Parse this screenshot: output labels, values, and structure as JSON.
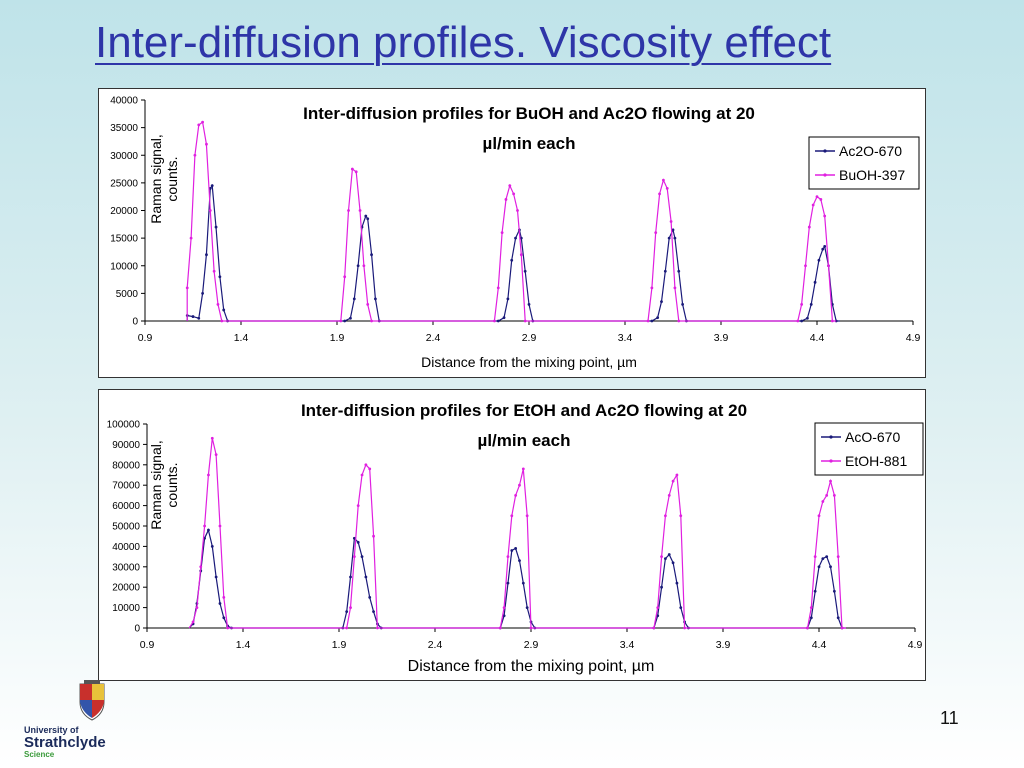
{
  "slide": {
    "title": "Inter-diffusion profiles. Viscosity effect",
    "page_number": "11"
  },
  "logo": {
    "line1": "University of",
    "line2": "Strathclyde",
    "line3": "Science"
  },
  "colors": {
    "navy": "#1a1a7a",
    "magenta": "#e020e0",
    "title_blue": "#2e35a8"
  },
  "chart_data": [
    {
      "type": "line",
      "title_lines": [
        "Inter-diffusion profiles for BuOH and Ac2O flowing at 20",
        "µl/min each"
      ],
      "xlabel": "Distance from the mixing point, µm",
      "ylabel_lines": [
        "Raman signal,",
        "counts."
      ],
      "xlim": [
        0.9,
        4.9
      ],
      "ylim": [
        0,
        40000
      ],
      "xticks": [
        0.9,
        1.4,
        1.9,
        2.4,
        2.9,
        3.4,
        3.9,
        4.4,
        4.9
      ],
      "yticks": [
        0,
        5000,
        10000,
        15000,
        20000,
        25000,
        30000,
        35000,
        40000
      ],
      "grid": false,
      "legend_position": "top-right",
      "series": [
        {
          "name": "Ac2O-670",
          "color": "#1a1a7a",
          "peaks": [
            {
              "x": [
                1.12,
                1.15,
                1.18,
                1.2,
                1.22,
                1.24,
                1.25,
                1.27,
                1.29,
                1.31,
                1.33
              ],
              "y": [
                1000,
                800,
                500,
                5000,
                12000,
                24000,
                24500,
                17000,
                8000,
                2000,
                0
              ]
            },
            {
              "x": [
                1.94,
                1.97,
                1.99,
                2.01,
                2.03,
                2.05,
                2.06,
                2.08,
                2.1,
                2.12
              ],
              "y": [
                0,
                500,
                4000,
                10000,
                17000,
                19000,
                18500,
                12000,
                4000,
                0
              ]
            },
            {
              "x": [
                2.74,
                2.77,
                2.79,
                2.81,
                2.83,
                2.85,
                2.86,
                2.88,
                2.9,
                2.92
              ],
              "y": [
                0,
                600,
                4000,
                11000,
                15000,
                16500,
                15000,
                9000,
                3000,
                0
              ]
            },
            {
              "x": [
                3.54,
                3.57,
                3.59,
                3.61,
                3.63,
                3.65,
                3.66,
                3.68,
                3.7,
                3.72
              ],
              "y": [
                0,
                600,
                3500,
                9000,
                15000,
                16500,
                15000,
                9000,
                3000,
                0
              ]
            },
            {
              "x": [
                4.32,
                4.35,
                4.37,
                4.39,
                4.41,
                4.43,
                4.44,
                4.46,
                4.48,
                4.5
              ],
              "y": [
                0,
                500,
                3000,
                7000,
                11000,
                13000,
                13500,
                10000,
                3000,
                0
              ]
            }
          ]
        },
        {
          "name": "BuOH-397",
          "color": "#e020e0",
          "peaks": [
            {
              "x": [
                1.12,
                1.14,
                1.16,
                1.18,
                1.2,
                1.22,
                1.24,
                1.26,
                1.28,
                1.3
              ],
              "y": [
                6000,
                15000,
                30000,
                35500,
                36000,
                32000,
                20000,
                9000,
                3000,
                0
              ]
            },
            {
              "x": [
                1.92,
                1.94,
                1.96,
                1.98,
                2.0,
                2.02,
                2.04,
                2.06,
                2.08
              ],
              "y": [
                0,
                8000,
                20000,
                27500,
                27000,
                20000,
                10000,
                3000,
                0
              ]
            },
            {
              "x": [
                2.72,
                2.74,
                2.76,
                2.78,
                2.8,
                2.82,
                2.84,
                2.86,
                2.88
              ],
              "y": [
                0,
                6000,
                16000,
                22000,
                24500,
                23000,
                20000,
                12000,
                0
              ]
            },
            {
              "x": [
                3.52,
                3.54,
                3.56,
                3.58,
                3.6,
                3.62,
                3.64,
                3.66,
                3.68
              ],
              "y": [
                0,
                6000,
                16000,
                23000,
                25500,
                24000,
                18000,
                6000,
                0
              ]
            },
            {
              "x": [
                4.3,
                4.32,
                4.34,
                4.36,
                4.38,
                4.4,
                4.42,
                4.44,
                4.46,
                4.48
              ],
              "y": [
                0,
                3000,
                10000,
                17000,
                21000,
                22500,
                22000,
                19000,
                10000,
                0
              ]
            }
          ]
        }
      ]
    },
    {
      "type": "line",
      "title_lines": [
        "Inter-diffusion profiles for EtOH and Ac2O flowing at 20",
        "µl/min each"
      ],
      "xlabel": "Distance from the mixing point, µm",
      "ylabel_lines": [
        "Raman signal,",
        "counts."
      ],
      "xlim": [
        0.9,
        4.9
      ],
      "ylim": [
        0,
        100000
      ],
      "xticks": [
        0.9,
        1.4,
        1.9,
        2.4,
        2.9,
        3.4,
        3.9,
        4.4,
        4.9
      ],
      "yticks": [
        0,
        10000,
        20000,
        30000,
        40000,
        50000,
        60000,
        70000,
        80000,
        90000,
        100000
      ],
      "grid": false,
      "legend_position": "top-right",
      "series": [
        {
          "name": "AcO-670",
          "color": "#1a1a7a",
          "peaks": [
            {
              "x": [
                1.14,
                1.16,
                1.18,
                1.2,
                1.22,
                1.24,
                1.26,
                1.28,
                1.3,
                1.32,
                1.34
              ],
              "y": [
                2000,
                12000,
                28000,
                44000,
                48000,
                40000,
                25000,
                12000,
                5000,
                1000,
                0
              ]
            },
            {
              "x": [
                1.92,
                1.94,
                1.96,
                1.98,
                2.0,
                2.02,
                2.04,
                2.06,
                2.08,
                2.1,
                2.12
              ],
              "y": [
                0,
                8000,
                25000,
                44000,
                42000,
                35000,
                25000,
                15000,
                8000,
                2000,
                0
              ]
            },
            {
              "x": [
                2.74,
                2.76,
                2.78,
                2.8,
                2.82,
                2.84,
                2.86,
                2.88,
                2.9,
                2.92
              ],
              "y": [
                0,
                6000,
                22000,
                38000,
                39000,
                33000,
                22000,
                10000,
                3000,
                0
              ]
            },
            {
              "x": [
                3.54,
                3.56,
                3.58,
                3.6,
                3.62,
                3.64,
                3.66,
                3.68,
                3.7,
                3.72
              ],
              "y": [
                0,
                6000,
                20000,
                34000,
                36000,
                32000,
                22000,
                10000,
                3000,
                0
              ]
            },
            {
              "x": [
                4.34,
                4.36,
                4.38,
                4.4,
                4.42,
                4.44,
                4.46,
                4.48,
                4.5,
                4.52
              ],
              "y": [
                0,
                5000,
                18000,
                30000,
                34000,
                35000,
                30000,
                18000,
                5000,
                0
              ]
            }
          ]
        },
        {
          "name": "EtOH-881",
          "color": "#e020e0",
          "peaks": [
            {
              "x": [
                1.14,
                1.16,
                1.18,
                1.2,
                1.22,
                1.24,
                1.26,
                1.28,
                1.3,
                1.32
              ],
              "y": [
                3000,
                10000,
                30000,
                50000,
                75000,
                93000,
                85000,
                50000,
                15000,
                0
              ]
            },
            {
              "x": [
                1.94,
                1.96,
                1.98,
                2.0,
                2.02,
                2.04,
                2.06,
                2.08,
                2.1
              ],
              "y": [
                0,
                10000,
                35000,
                60000,
                75000,
                80000,
                78000,
                45000,
                0
              ]
            },
            {
              "x": [
                2.74,
                2.76,
                2.78,
                2.8,
                2.82,
                2.84,
                2.86,
                2.88,
                2.9
              ],
              "y": [
                0,
                10000,
                35000,
                55000,
                65000,
                70000,
                78000,
                55000,
                0
              ]
            },
            {
              "x": [
                3.54,
                3.56,
                3.58,
                3.6,
                3.62,
                3.64,
                3.66,
                3.68,
                3.7
              ],
              "y": [
                0,
                10000,
                35000,
                55000,
                65000,
                72000,
                75000,
                55000,
                0
              ]
            },
            {
              "x": [
                4.34,
                4.36,
                4.38,
                4.4,
                4.42,
                4.44,
                4.46,
                4.48,
                4.5,
                4.52
              ],
              "y": [
                0,
                10000,
                35000,
                55000,
                62000,
                65000,
                72000,
                65000,
                35000,
                0
              ]
            }
          ]
        }
      ]
    }
  ]
}
